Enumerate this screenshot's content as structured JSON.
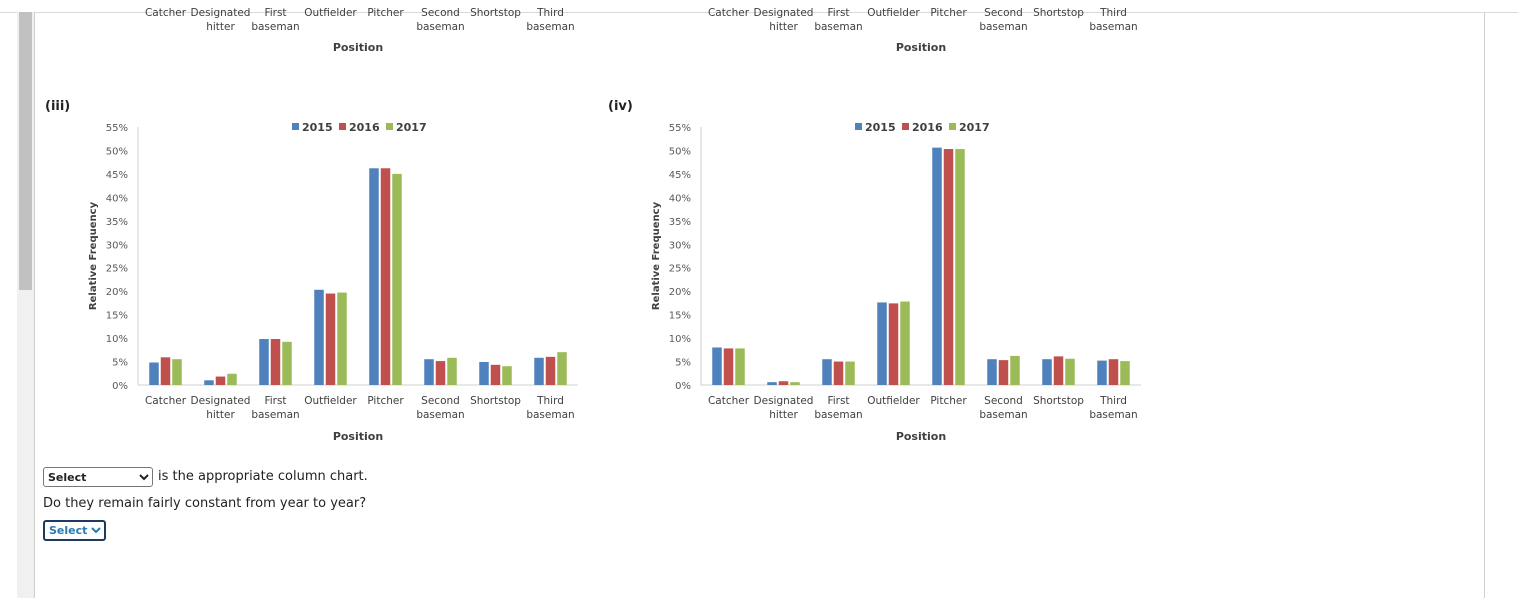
{
  "top_partial": {
    "left": {
      "tick_labels": [
        [
          "Catcher"
        ],
        [
          "Designated",
          "hitter"
        ],
        [
          "First",
          "baseman"
        ],
        [
          "Outfielder"
        ],
        [
          "Pitcher"
        ],
        [
          "Second",
          "baseman"
        ],
        [
          "Shortstop"
        ],
        [
          "Third",
          "baseman"
        ]
      ],
      "xlabel": "Position"
    },
    "right": {
      "tick_labels": [
        [
          "Catcher"
        ],
        [
          "Designated",
          "hitter"
        ],
        [
          "First",
          "baseman"
        ],
        [
          "Outfielder"
        ],
        [
          "Pitcher"
        ],
        [
          "Second",
          "baseman"
        ],
        [
          "Shortstop"
        ],
        [
          "Third",
          "baseman"
        ]
      ],
      "xlabel": "Position"
    }
  },
  "chart_data": [
    {
      "id": "iii",
      "panel_label": "(iii)",
      "type": "bar",
      "categories": [
        [
          "Catcher"
        ],
        [
          "Designated",
          "hitter"
        ],
        [
          "First",
          "baseman"
        ],
        [
          "Outfielder"
        ],
        [
          "Pitcher"
        ],
        [
          "Second",
          "baseman"
        ],
        [
          "Shortstop"
        ],
        [
          "Third",
          "baseman"
        ]
      ],
      "series": [
        {
          "name": "2015",
          "color": "#4F81BD",
          "values": [
            4.8,
            1.0,
            9.8,
            20.3,
            46.2,
            5.5,
            4.9,
            5.8
          ]
        },
        {
          "name": "2016",
          "color": "#C0504D",
          "values": [
            5.9,
            1.8,
            9.8,
            19.5,
            46.2,
            5.1,
            4.3,
            6.0
          ]
        },
        {
          "name": "2017",
          "color": "#9BBB59",
          "values": [
            5.5,
            2.4,
            9.2,
            19.7,
            45.0,
            5.8,
            4.0,
            7.0
          ]
        }
      ],
      "y_ticks": [
        "0%",
        "5%",
        "10%",
        "15%",
        "20%",
        "25%",
        "30%",
        "35%",
        "40%",
        "45%",
        "50%",
        "55%"
      ],
      "ylim": [
        0,
        55
      ],
      "xlabel": "Position",
      "ylabel": "Relative Frequency",
      "legend_position": "top-center"
    },
    {
      "id": "iv",
      "panel_label": "(iv)",
      "type": "bar",
      "categories": [
        [
          "Catcher"
        ],
        [
          "Designated",
          "hitter"
        ],
        [
          "First",
          "baseman"
        ],
        [
          "Outfielder"
        ],
        [
          "Pitcher"
        ],
        [
          "Second",
          "baseman"
        ],
        [
          "Shortstop"
        ],
        [
          "Third",
          "baseman"
        ]
      ],
      "series": [
        {
          "name": "2015",
          "color": "#4F81BD",
          "values": [
            8.0,
            0.6,
            5.5,
            17.6,
            50.6,
            5.5,
            5.5,
            5.2
          ]
        },
        {
          "name": "2016",
          "color": "#C0504D",
          "values": [
            7.8,
            0.8,
            5.0,
            17.4,
            50.3,
            5.3,
            6.1,
            5.5
          ]
        },
        {
          "name": "2017",
          "color": "#9BBB59",
          "values": [
            7.8,
            0.6,
            5.0,
            17.8,
            50.3,
            6.2,
            5.6,
            5.1
          ]
        }
      ],
      "y_ticks": [
        "0%",
        "5%",
        "10%",
        "15%",
        "20%",
        "25%",
        "30%",
        "35%",
        "40%",
        "45%",
        "50%",
        "55%"
      ],
      "ylim": [
        0,
        55
      ],
      "xlabel": "Position",
      "ylabel": "Relative Frequency",
      "legend_position": "top-center"
    }
  ],
  "question": {
    "select1_value": "Select",
    "line1_text": "is the appropriate column chart.",
    "line2_text": "Do they remain fairly constant from year to year?",
    "select2_value": "Select"
  }
}
